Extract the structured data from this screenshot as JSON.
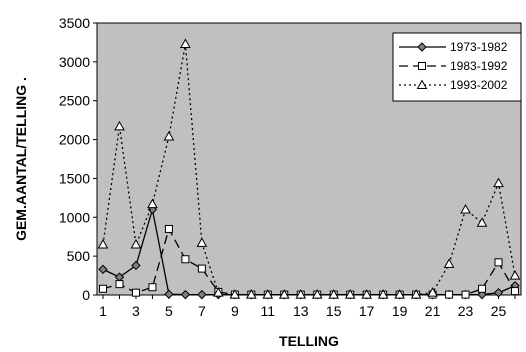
{
  "chart_data": {
    "type": "line",
    "title": "",
    "xlabel": "TELLING",
    "ylabel": "GEM.AANTAL/TELLING .",
    "x": [
      1,
      2,
      3,
      4,
      5,
      6,
      7,
      8,
      9,
      10,
      11,
      12,
      13,
      14,
      15,
      16,
      17,
      18,
      19,
      20,
      21,
      22,
      23,
      24,
      25,
      26
    ],
    "xticks": [
      "1",
      "3",
      "5",
      "7",
      "9",
      "11",
      "13",
      "15",
      "17",
      "19",
      "21",
      "23",
      "25"
    ],
    "yticks": [
      "0",
      "500",
      "1000",
      "1500",
      "2000",
      "2500",
      "3000",
      "3500"
    ],
    "xlim": [
      1,
      26
    ],
    "ylim": [
      0,
      3500
    ],
    "grid": false,
    "legend_position": "top-right",
    "plot_background": "#c0c0c0",
    "series": [
      {
        "name": "1973-1982",
        "style": "solid",
        "marker": "diamond-filled",
        "color": "#000000",
        "values": [
          330,
          230,
          380,
          1100,
          10,
          5,
          5,
          5,
          5,
          5,
          5,
          5,
          5,
          5,
          5,
          5,
          5,
          5,
          5,
          5,
          5,
          5,
          5,
          5,
          30,
          120
        ]
      },
      {
        "name": "1983-1992",
        "style": "dashed",
        "marker": "square-open",
        "color": "#000000",
        "values": [
          80,
          140,
          30,
          100,
          850,
          460,
          340,
          40,
          5,
          5,
          5,
          5,
          5,
          5,
          5,
          5,
          5,
          5,
          5,
          5,
          5,
          5,
          5,
          80,
          420,
          50
        ]
      },
      {
        "name": "1993-2002",
        "style": "dotted",
        "marker": "triangle-open",
        "color": "#000000",
        "values": [
          650,
          2170,
          650,
          1170,
          2040,
          3230,
          670,
          30,
          5,
          5,
          5,
          5,
          5,
          5,
          5,
          5,
          5,
          5,
          5,
          5,
          30,
          400,
          1100,
          930,
          1440,
          250
        ]
      }
    ]
  }
}
